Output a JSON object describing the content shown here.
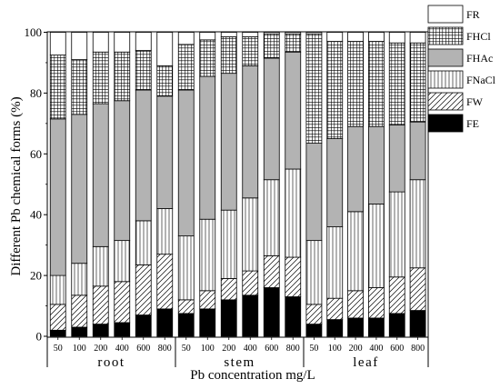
{
  "chart_data": {
    "type": "bar",
    "stacked": true,
    "title": "",
    "ylabel": "Different Pb chemical forms (%)",
    "xlabel": "Pb concentration mg/L",
    "ylim": [
      0,
      100
    ],
    "yticks": [
      0,
      20,
      40,
      60,
      80,
      100
    ],
    "legend_position": "top-right",
    "groups": [
      {
        "name": "root",
        "categories": [
          "50",
          "100",
          "200",
          "400",
          "600",
          "800"
        ]
      },
      {
        "name": "stem",
        "categories": [
          "50",
          "100",
          "200",
          "400",
          "600",
          "800"
        ]
      },
      {
        "name": "leaf",
        "categories": [
          "50",
          "100",
          "200",
          "400",
          "600",
          "800"
        ]
      }
    ],
    "series": [
      {
        "name": "FE",
        "fill": "solid-black",
        "values": [
          2,
          3,
          4,
          4.5,
          7,
          9,
          7.5,
          9,
          12,
          13.5,
          16,
          13,
          4,
          5.5,
          6,
          6,
          7.5,
          8.5
        ]
      },
      {
        "name": "FW",
        "fill": "diagonal-hatch",
        "values": [
          8.5,
          10.5,
          12.5,
          13.5,
          16.5,
          18,
          4.5,
          6,
          7,
          8,
          10.5,
          13,
          6.5,
          7,
          9,
          10,
          12,
          14
        ]
      },
      {
        "name": "FNaCl",
        "fill": "vertical-lines",
        "values": [
          9.5,
          10.5,
          13,
          13.5,
          14.5,
          15,
          21,
          23.5,
          22.5,
          24,
          25,
          29,
          21,
          23.5,
          26,
          27.5,
          28,
          29
        ]
      },
      {
        "name": "FHAc",
        "fill": "gray",
        "values": [
          51.5,
          49,
          47,
          46,
          43,
          37,
          48,
          47,
          45,
          43.5,
          40,
          38.5,
          32,
          29,
          28,
          25.5,
          22,
          19
        ]
      },
      {
        "name": "FHCl",
        "fill": "grid-hatch",
        "values": [
          21,
          18,
          17,
          16,
          13,
          10,
          15,
          12,
          12,
          9.5,
          8,
          6,
          36,
          32,
          28,
          28,
          27,
          26
        ]
      },
      {
        "name": "FR",
        "fill": "white",
        "values": [
          7.5,
          9,
          6.5,
          6.5,
          6,
          11,
          4,
          2.5,
          1.5,
          1.5,
          0.5,
          0.5,
          0.5,
          3,
          3,
          3,
          3.5,
          3.5
        ]
      }
    ]
  }
}
